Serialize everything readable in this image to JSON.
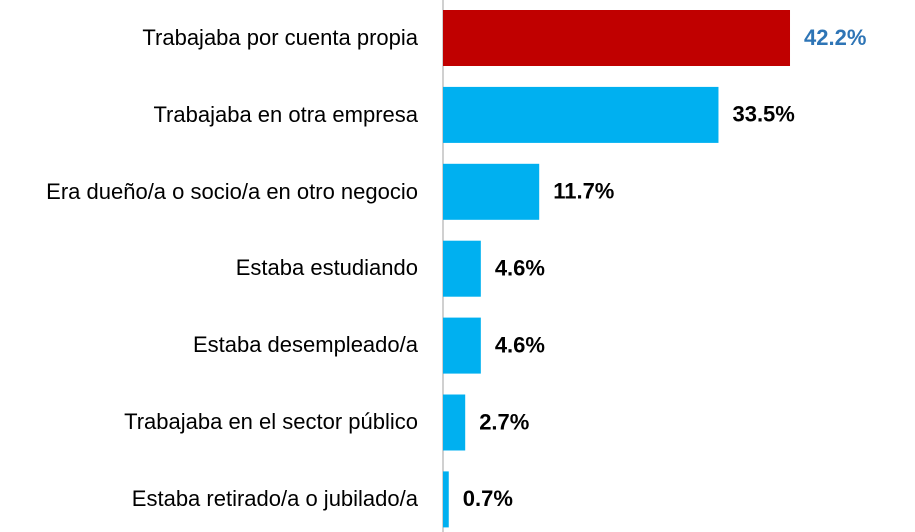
{
  "chart_data": {
    "type": "bar",
    "orientation": "horizontal",
    "categories": [
      "Trabajaba por cuenta propia",
      "Trabajaba en otra empresa",
      "Era dueño/a o socio/a en otro negocio",
      "Estaba estudiando",
      "Estaba desempleado/a",
      "Trabajaba en el sector público",
      "Estaba retirado/a o jubilado/a"
    ],
    "values": [
      42.2,
      33.5,
      11.7,
      4.6,
      4.6,
      2.7,
      0.7
    ],
    "value_labels": [
      "42.2%",
      "33.5%",
      "11.7%",
      "4.6%",
      "4.6%",
      "2.7%",
      "0.7%"
    ],
    "colors": [
      "#c00000",
      "#00b0f0",
      "#00b0f0",
      "#00b0f0",
      "#00b0f0",
      "#00b0f0",
      "#00b0f0"
    ],
    "label_colors": [
      "#2e75b6",
      "#000000",
      "#000000",
      "#000000",
      "#000000",
      "#000000",
      "#000000"
    ],
    "xlim": [
      0,
      57.4
    ]
  }
}
